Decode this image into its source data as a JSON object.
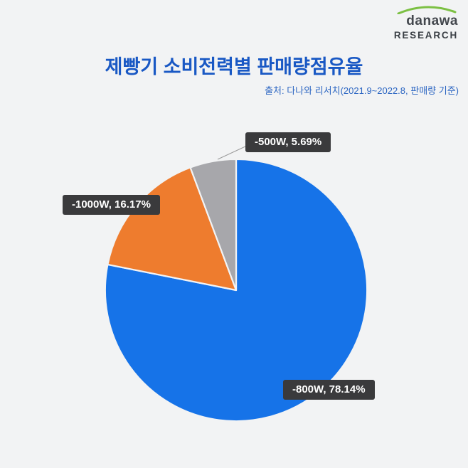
{
  "logo": {
    "brand": "danawa",
    "research": "RESEARCH"
  },
  "header": {
    "title": "제빵기 소비전력별 판매량점유율",
    "source": "출처: 다나와 리서치(2021.9~2022.8, 판매량 기준)"
  },
  "chart_data": {
    "type": "pie",
    "title": "제빵기 소비전력별 판매량점유율",
    "source_note": "출처: 다나와 리서치(2021.9~2022.8, 판매량 기준)",
    "unit": "%",
    "start_angle_deg": 0,
    "direction": "clockwise",
    "legend_position": "callout-labels",
    "background_color": "#f2f3f4",
    "title_color": "#1958c4",
    "label_box_color": "#3a3a3c",
    "label_text_color": "#ffffff",
    "slice_border_color": "#f2f3f4",
    "slices": [
      {
        "label": "-800W",
        "value": 78.14,
        "display": "-800W, 78.14%",
        "color": "#1673e8"
      },
      {
        "label": "-1000W",
        "value": 16.17,
        "display": "-1000W, 16.17%",
        "color": "#ee7c2e"
      },
      {
        "label": "-500W",
        "value": 5.69,
        "display": "-500W, 5.69%",
        "color": "#a7a7ab"
      }
    ]
  }
}
